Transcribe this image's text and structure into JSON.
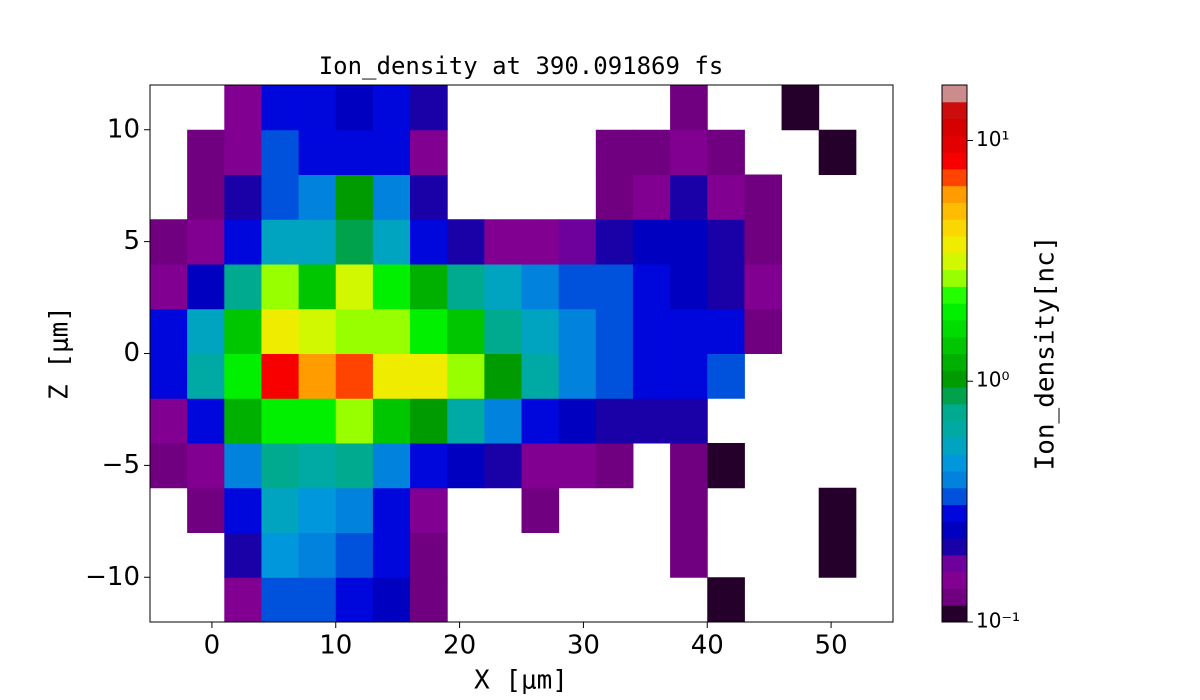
{
  "chart_data": {
    "type": "heatmap",
    "title": "Ion_density at 390.091869 fs",
    "x_label": "X [μm]",
    "y_label": "Z [μm]",
    "colorbar_label": "Ion_density[nc]",
    "colormap": "nipy_spectral",
    "color_scale": "log",
    "xlim": [
      -5,
      55
    ],
    "ylim": [
      -12,
      12
    ],
    "xticks": [
      0,
      10,
      20,
      30,
      40,
      50
    ],
    "yticks": [
      {
        "value": -10,
        "label": "−10"
      },
      {
        "value": -5,
        "label": "−5"
      },
      0,
      5,
      10
    ],
    "clim": [
      0.1,
      17
    ],
    "cticks": [
      {
        "value": 0.1,
        "label": "10⁻¹"
      },
      {
        "value": 1,
        "label": "10⁰"
      },
      {
        "value": 10,
        "label": "10¹"
      }
    ],
    "x_edges": [
      -5,
      -2,
      1,
      4,
      7,
      10,
      13,
      16,
      19,
      22,
      25,
      28,
      31,
      34,
      37,
      40,
      43,
      46,
      49,
      52,
      55
    ],
    "y_edges": [
      -12,
      -10,
      -8,
      -6,
      -4,
      -2,
      0,
      2,
      4,
      6,
      8,
      10,
      12
    ],
    "values": [
      [
        null,
        null,
        0.15,
        0.35,
        0.35,
        0.3,
        0.25,
        0.12,
        null,
        null,
        null,
        null,
        null,
        null,
        null,
        0.11,
        null,
        null,
        null,
        null
      ],
      [
        null,
        null,
        0.2,
        0.45,
        0.4,
        0.35,
        0.3,
        0.13,
        null,
        null,
        null,
        null,
        null,
        null,
        0.12,
        null,
        null,
        null,
        0.11,
        null
      ],
      [
        null,
        0.12,
        0.3,
        0.5,
        0.45,
        0.4,
        0.3,
        0.15,
        null,
        null,
        0.12,
        null,
        null,
        null,
        0.12,
        null,
        null,
        null,
        0.11,
        null
      ],
      [
        0.12,
        0.15,
        0.4,
        0.8,
        0.6,
        0.7,
        0.4,
        0.3,
        0.25,
        0.2,
        0.15,
        0.15,
        0.13,
        null,
        0.12,
        0.11,
        null,
        null,
        null,
        null
      ],
      [
        0.15,
        0.3,
        1.2,
        2,
        2,
        2.5,
        1.5,
        1,
        0.6,
        0.4,
        0.3,
        0.25,
        0.2,
        0.2,
        0.2,
        null,
        null,
        null,
        null,
        null
      ],
      [
        0.3,
        0.6,
        2,
        8,
        6,
        7,
        4,
        3.5,
        2.5,
        1,
        0.6,
        0.4,
        0.35,
        0.3,
        0.3,
        0.35,
        null,
        null,
        null,
        null
      ],
      [
        0.3,
        0.5,
        1.5,
        4,
        3,
        2.5,
        2.5,
        2,
        1.5,
        0.8,
        0.5,
        0.4,
        0.35,
        0.3,
        0.3,
        0.3,
        0.12,
        null,
        null,
        null
      ],
      [
        0.15,
        0.25,
        0.8,
        2.5,
        1.5,
        3,
        2,
        1.2,
        0.8,
        0.5,
        0.4,
        0.35,
        0.35,
        0.3,
        0.25,
        0.2,
        0.15,
        null,
        null,
        null
      ],
      [
        0.12,
        0.15,
        0.3,
        0.5,
        0.5,
        0.9,
        0.5,
        0.3,
        0.2,
        0.15,
        0.15,
        0.18,
        0.2,
        0.25,
        0.25,
        0.2,
        0.13,
        null,
        null,
        null
      ],
      [
        null,
        0.13,
        0.2,
        0.35,
        0.4,
        1.0,
        0.4,
        0.2,
        null,
        null,
        null,
        null,
        0.13,
        0.15,
        0.2,
        0.15,
        0.12,
        null,
        null,
        null
      ],
      [
        null,
        0.12,
        0.15,
        0.35,
        0.3,
        0.3,
        0.3,
        0.15,
        null,
        null,
        null,
        null,
        0.12,
        0.12,
        0.15,
        0.13,
        null,
        null,
        0.11,
        null
      ],
      [
        null,
        null,
        0.15,
        0.3,
        0.3,
        0.25,
        0.3,
        0.2,
        null,
        null,
        null,
        null,
        null,
        null,
        0.12,
        null,
        null,
        0.11,
        null,
        null
      ]
    ]
  }
}
